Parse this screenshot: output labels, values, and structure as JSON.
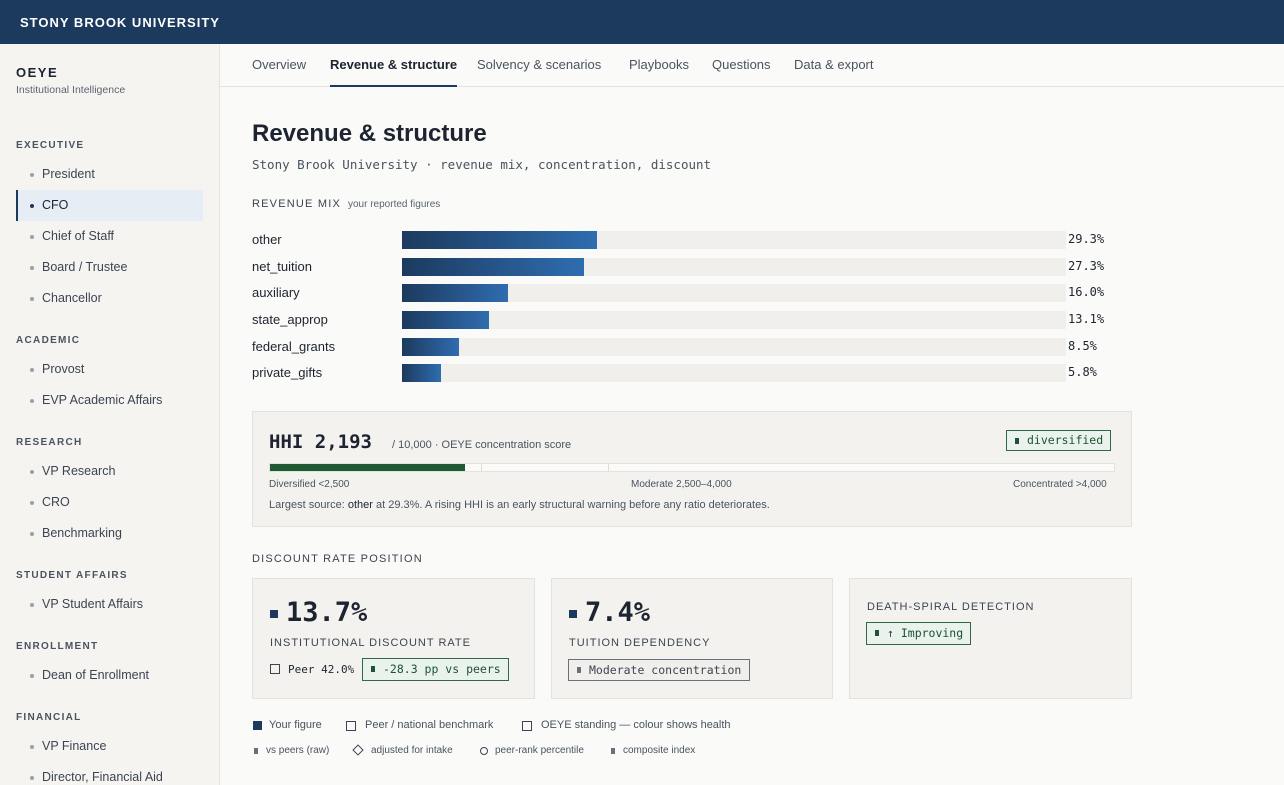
{
  "header": {
    "brand": "STONY BROOK UNIVERSITY"
  },
  "sidebar": {
    "app_name": "OEYE",
    "app_sub": "Institutional Intelligence",
    "sections": [
      {
        "title": "EXECUTIVE",
        "items": [
          "President",
          "CFO",
          "Chief of Staff",
          "Board / Trustee",
          "Chancellor"
        ]
      },
      {
        "title": "ACADEMIC",
        "items": [
          "Provost",
          "EVP Academic Affairs"
        ]
      },
      {
        "title": "RESEARCH",
        "items": [
          "VP Research",
          "CRO",
          "Benchmarking"
        ]
      },
      {
        "title": "STUDENT AFFAIRS",
        "items": [
          "VP Student Affairs"
        ]
      },
      {
        "title": "ENROLLMENT",
        "items": [
          "Dean of Enrollment"
        ]
      },
      {
        "title": "FINANCIAL",
        "items": [
          "VP Finance",
          "Director, Financial Aid"
        ]
      }
    ],
    "active_item": "CFO"
  },
  "tabs": [
    "Overview",
    "Revenue & structure",
    "Solvency & scenarios",
    "Playbooks",
    "Questions",
    "Data & export"
  ],
  "active_tab": "Revenue & structure",
  "page": {
    "title": "Revenue & structure",
    "subtitle": "Stony Brook University · revenue mix, concentration, discount"
  },
  "revenue_mix": {
    "label": "REVENUE MIX",
    "note": "your reported figures",
    "rows": [
      {
        "name": "other",
        "pct_label": "29.3%",
        "fraction": 0.293
      },
      {
        "name": "net_tuition",
        "pct_label": "27.3%",
        "fraction": 0.273
      },
      {
        "name": "auxiliary",
        "pct_label": "16.0%",
        "fraction": 0.16
      },
      {
        "name": "state_approp",
        "pct_label": "13.1%",
        "fraction": 0.131
      },
      {
        "name": "federal_grants",
        "pct_label": "8.5%",
        "fraction": 0.085
      },
      {
        "name": "private_gifts",
        "pct_label": "5.8%",
        "fraction": 0.058
      }
    ]
  },
  "hhi": {
    "value_label": "HHI 2,193",
    "value": 2193,
    "scale_max": 10000,
    "desc": "/ 10,000 · OEYE concentration score",
    "badge": "diversified",
    "label_diversified": "Diversified <2,500",
    "label_moderate": "Moderate 2,500–4,000",
    "label_concentrated": "Concentrated >4,000",
    "note_prefix": "Largest source: ",
    "note_source": "other",
    "note_suffix": " at 29.3%. A rising HHI is an early structural warning before any ratio deteriorates."
  },
  "discount": {
    "label": "DISCOUNT RATE POSITION",
    "rate_value": "13.7%",
    "rate_label": "INSTITUTIONAL DISCOUNT RATE",
    "peer_text": "Peer 42.0%",
    "peer_badge": "-28.3 pp vs peers",
    "tuition_value": "7.4%",
    "tuition_label": "TUITION DEPENDENCY",
    "tuition_badge": "Moderate concentration",
    "spiral_label": "DEATH-SPIRAL DETECTION",
    "spiral_badge": "↑ Improving"
  },
  "legend": {
    "your_figure": "Your figure",
    "peer_benchmark": "Peer / national benchmark",
    "standing": "OEYE standing — colour shows health",
    "vs_peers": "vs peers (raw)",
    "adjusted": "adjusted for intake",
    "percentile": "peer-rank percentile",
    "composite": "composite index"
  },
  "colors": {
    "navy": "#1c3a5e",
    "blue": "#2f6db0",
    "green": "#1f5a35"
  }
}
